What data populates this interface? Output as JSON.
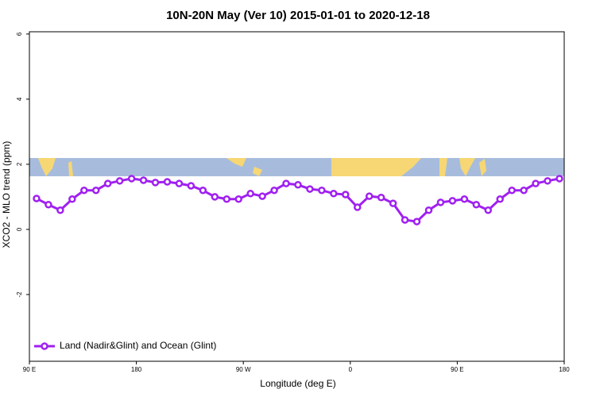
{
  "chart_data": {
    "type": "line",
    "title": "10N-20N May (Ver 10)   2015-01-01 to 2020-12-18",
    "x_label": "Longitude (deg E)",
    "y_label": "XCO2 - MLO trend (ppm)",
    "xlim": [
      90,
      540
    ],
    "xticks": [
      {
        "value": 90,
        "label": "90 E"
      },
      {
        "value": 180,
        "label": "180"
      },
      {
        "value": 270,
        "label": "90 W"
      },
      {
        "value": 360,
        "label": "0"
      },
      {
        "value": 450,
        "label": "90 E"
      },
      {
        "value": 540,
        "label": "180"
      }
    ],
    "ylim": [
      -4.05,
      6.07
    ],
    "yticks": [
      -2,
      0,
      2,
      4,
      6
    ],
    "legend": "bottom-left",
    "x": [
      96,
      106,
      116,
      126,
      136,
      146,
      156,
      166,
      176,
      186,
      196,
      206,
      216,
      226,
      236,
      246,
      256,
      266,
      276,
      286,
      296,
      306,
      316,
      326,
      336,
      346,
      356,
      366,
      376,
      386,
      396,
      406,
      416,
      426,
      436,
      446,
      456,
      466,
      476,
      486,
      496,
      506,
      516,
      526,
      536
    ],
    "series": [
      {
        "name": "Land (Nadir&Glint) and Ocean (Glint)",
        "color": "#a020f0",
        "values": [
          0.95,
          0.76,
          0.59,
          0.93,
          1.2,
          1.2,
          1.41,
          1.49,
          1.56,
          1.51,
          1.44,
          1.46,
          1.41,
          1.34,
          1.2,
          1.0,
          0.93,
          0.93,
          1.1,
          1.02,
          1.2,
          1.41,
          1.37,
          1.24,
          1.2,
          1.1,
          1.07,
          0.68,
          1.02,
          0.98,
          0.8,
          0.29,
          0.24,
          0.59,
          0.83,
          0.88,
          0.93,
          0.76,
          0.59,
          0.93,
          1.2,
          1.2,
          1.41,
          1.49,
          1.56
        ]
      }
    ]
  }
}
